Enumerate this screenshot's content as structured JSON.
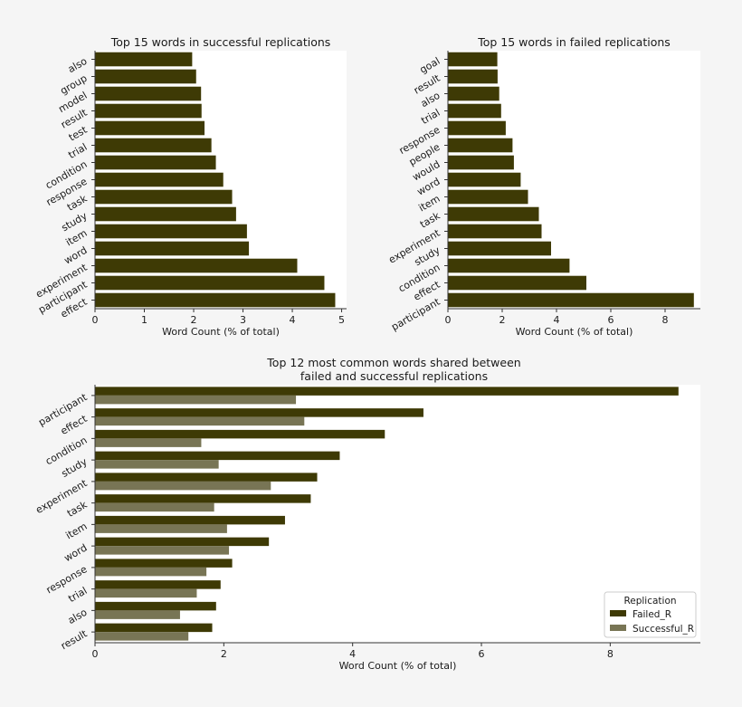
{
  "colors": {
    "failed": "#3e3a05",
    "successful": "#787555",
    "page": "#f5f5f5",
    "axes": "#ffffff"
  },
  "chart_data": [
    {
      "id": "successful",
      "type": "bar",
      "orientation": "horizontal",
      "title": "Top 15 words in successful replications",
      "xlabel": "Word Count (% of total)",
      "ylabel": "",
      "xlim": [
        0,
        5.1
      ],
      "xticks": [
        0,
        1,
        2,
        3,
        4,
        5
      ],
      "categories": [
        "also",
        "group",
        "model",
        "result",
        "test",
        "trial",
        "condition",
        "response",
        "task",
        "study",
        "item",
        "word",
        "experiment",
        "participant",
        "effect"
      ],
      "values": [
        1.97,
        2.05,
        2.15,
        2.16,
        2.22,
        2.36,
        2.45,
        2.6,
        2.78,
        2.86,
        3.08,
        3.12,
        4.1,
        4.65,
        4.87
      ],
      "color": "failed"
    },
    {
      "id": "failed",
      "type": "bar",
      "orientation": "horizontal",
      "title": "Top 15 words in failed replications",
      "xlabel": "Word Count (% of total)",
      "ylabel": "",
      "xlim": [
        0,
        9.3
      ],
      "xticks": [
        0,
        2,
        4,
        6,
        8
      ],
      "categories": [
        "goal",
        "result",
        "also",
        "trial",
        "response",
        "people",
        "would",
        "word",
        "item",
        "task",
        "experiment",
        "study",
        "condition",
        "effect",
        "participant"
      ],
      "values": [
        1.82,
        1.83,
        1.89,
        1.96,
        2.13,
        2.38,
        2.43,
        2.68,
        2.95,
        3.35,
        3.45,
        3.8,
        4.48,
        5.1,
        9.06
      ],
      "color": "failed"
    },
    {
      "id": "shared",
      "type": "bar",
      "orientation": "horizontal",
      "title_lines": [
        "Top 12 most common words shared between",
        "failed and successful replications"
      ],
      "xlabel": "Word Count (% of total)",
      "ylabel": "",
      "xlim": [
        0,
        9.4
      ],
      "xticks": [
        0,
        2,
        4,
        6,
        8
      ],
      "categories": [
        "participant",
        "effect",
        "condition",
        "study",
        "experiment",
        "task",
        "item",
        "word",
        "response",
        "trial",
        "also",
        "result"
      ],
      "series": [
        {
          "name": "Failed_R",
          "color": "failed",
          "values": [
            9.06,
            5.1,
            4.5,
            3.8,
            3.45,
            3.35,
            2.95,
            2.7,
            2.13,
            1.95,
            1.88,
            1.82
          ]
        },
        {
          "name": "Successful_R",
          "color": "successful",
          "values": [
            3.12,
            3.25,
            1.65,
            1.92,
            2.73,
            1.85,
            2.05,
            2.08,
            1.73,
            1.58,
            1.32,
            1.45
          ]
        }
      ],
      "legend": {
        "title": "Replication",
        "position": "lower-right"
      }
    }
  ]
}
